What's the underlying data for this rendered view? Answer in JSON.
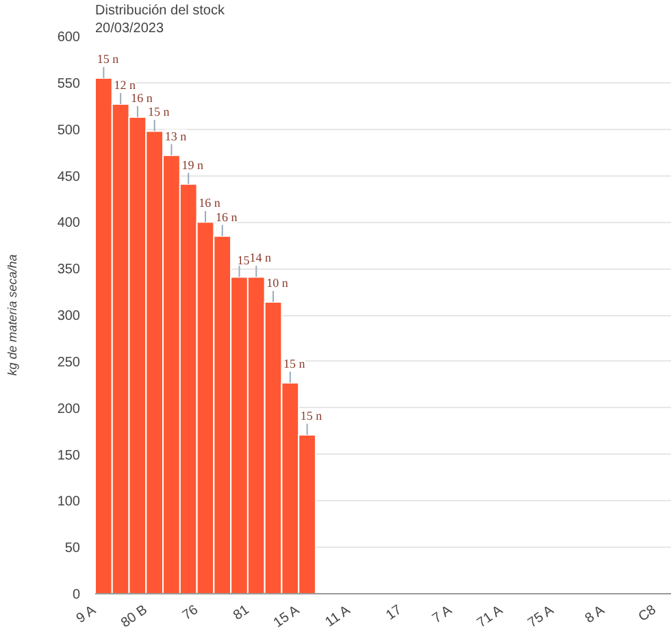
{
  "chart_data": {
    "type": "bar",
    "title": "Distribución del stock",
    "subtitle": "20/03/2023",
    "ylabel": "kg de materia seca/ha",
    "categories": [
      "9 A",
      null,
      null,
      "80 B",
      null,
      null,
      "76",
      null,
      null,
      "81",
      null,
      null,
      "15 A",
      null,
      null,
      "11 A",
      null,
      null,
      "17",
      null,
      null,
      "7 A",
      null,
      null,
      "71 A",
      null,
      null,
      "75 A",
      null,
      null,
      "8 A",
      null,
      null,
      "C8"
    ],
    "values": [
      555,
      527,
      513,
      498,
      472,
      441,
      400,
      385,
      341,
      341,
      314,
      227,
      171,
      null,
      null,
      null,
      null,
      null,
      null,
      null,
      null,
      null,
      null,
      null,
      null,
      null,
      null,
      null,
      null,
      null,
      null,
      null,
      null,
      null
    ],
    "annotations": [
      {
        "text": "15 n",
        "y": 555
      },
      {
        "text": "12 n",
        "y": 527
      },
      {
        "text": "16 n",
        "y": 513
      },
      {
        "text": "15 n",
        "y": 498
      },
      {
        "text": "13 n",
        "y": 472
      },
      {
        "text": "19 n",
        "y": 441
      },
      {
        "text": "16 n",
        "y": 400
      },
      {
        "text": "16 n",
        "y": 385
      },
      {
        "text": "15",
        "y": 341
      },
      {
        "text": "14 n",
        "y": 341
      },
      {
        "text": "10 n",
        "y": 314
      },
      {
        "text": "15 n",
        "y": 227
      },
      {
        "text": "15 n",
        "y": 171
      }
    ],
    "color": "#ff5733",
    "ylim": [
      0,
      600
    ],
    "yticks": [
      0,
      50,
      100,
      150,
      200,
      250,
      300,
      350,
      400,
      450,
      500,
      550,
      600
    ],
    "grid": "y"
  }
}
